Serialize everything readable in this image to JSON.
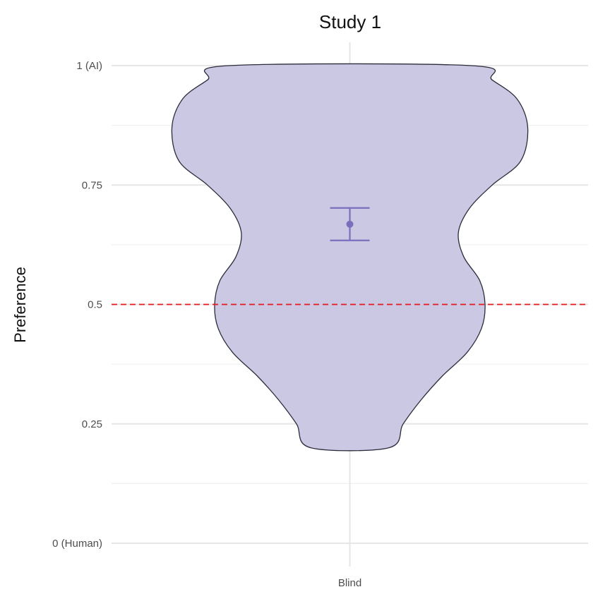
{
  "chart_data": {
    "type": "violin",
    "title": "Study 1",
    "xlabel": "",
    "ylabel": "Preference",
    "categories": [
      "Blind"
    ],
    "ylim": [
      0,
      1
    ],
    "y_ticks": [
      {
        "value": 0,
        "label": "0 (Human)"
      },
      {
        "value": 0.25,
        "label": "0.25"
      },
      {
        "value": 0.5,
        "label": "0.5"
      },
      {
        "value": 0.75,
        "label": "0.75"
      },
      {
        "value": 1,
        "label": "1 (AI)"
      }
    ],
    "grid": true,
    "reference_line": {
      "value": 0.5,
      "style": "dashed",
      "color": "#e41a1c"
    },
    "series": [
      {
        "category": "Blind",
        "fill_color": "#c8c5e3",
        "outline_color": "#2b2b3a",
        "point_color": "#7b6fbd",
        "y_range": [
          0.2,
          1.0
        ],
        "density_profile": [
          {
            "y": 0.2,
            "half_width": 0.22
          },
          {
            "y": 0.25,
            "half_width": 0.3
          },
          {
            "y": 0.3,
            "half_width": 0.4
          },
          {
            "y": 0.35,
            "half_width": 0.52
          },
          {
            "y": 0.4,
            "half_width": 0.66
          },
          {
            "y": 0.45,
            "half_width": 0.74
          },
          {
            "y": 0.5,
            "half_width": 0.76
          },
          {
            "y": 0.55,
            "half_width": 0.73
          },
          {
            "y": 0.6,
            "half_width": 0.64
          },
          {
            "y": 0.65,
            "half_width": 0.61
          },
          {
            "y": 0.7,
            "half_width": 0.67
          },
          {
            "y": 0.75,
            "half_width": 0.8
          },
          {
            "y": 0.8,
            "half_width": 0.96
          },
          {
            "y": 0.87,
            "half_width": 1.0
          },
          {
            "y": 0.93,
            "half_width": 0.94
          },
          {
            "y": 0.97,
            "half_width": 0.8
          },
          {
            "y": 1.0,
            "half_width": 0.68
          }
        ],
        "mean": 0.668,
        "error_low": 0.634,
        "error_high": 0.702
      }
    ]
  }
}
